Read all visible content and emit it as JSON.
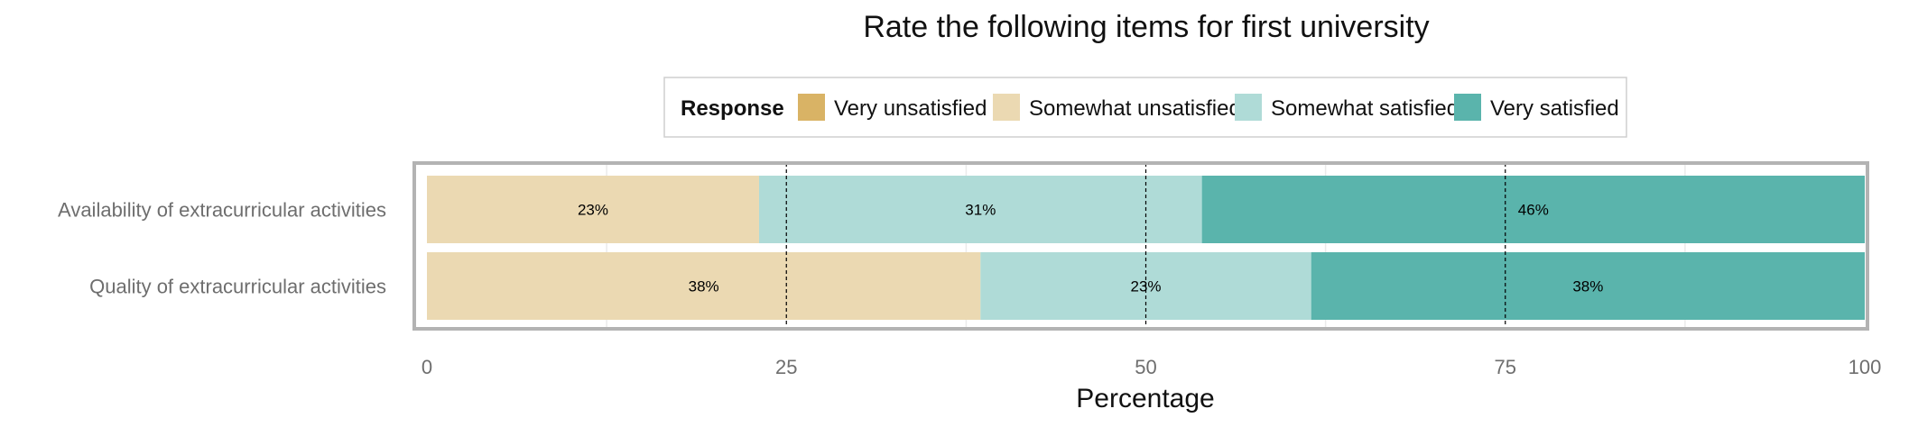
{
  "chart_data": {
    "type": "bar",
    "orientation": "horizontal",
    "stacked": true,
    "title": "Rate the following items for first university",
    "xlabel": "Percentage",
    "ylabel": "",
    "xlim": [
      0,
      100
    ],
    "x_ticks": [
      0,
      25,
      50,
      75,
      100
    ],
    "grid": true,
    "legend": {
      "title": "Response",
      "placement": "top",
      "entries": [
        "Very unsatisfied",
        "Somewhat unsatisfied",
        "Somewhat satisfied",
        "Very satisfied"
      ]
    },
    "categories": [
      "Availability of extracurricular activities",
      "Quality of extracurricular activities"
    ],
    "series": [
      {
        "name": "Very unsatisfied",
        "color": "#d9b365",
        "values": [
          0,
          0
        ]
      },
      {
        "name": "Somewhat unsatisfied",
        "color": "#ebd9b2",
        "values": [
          23.1,
          38.5
        ]
      },
      {
        "name": "Somewhat satisfied",
        "color": "#afdbd7",
        "values": [
          30.8,
          23.0
        ]
      },
      {
        "name": "Very satisfied",
        "color": "#5ab4ac",
        "values": [
          46.1,
          38.5
        ]
      }
    ],
    "data_labels": [
      [
        "",
        "23%",
        "31%",
        "46%"
      ],
      [
        "",
        "38%",
        "23%",
        "38%"
      ]
    ]
  }
}
